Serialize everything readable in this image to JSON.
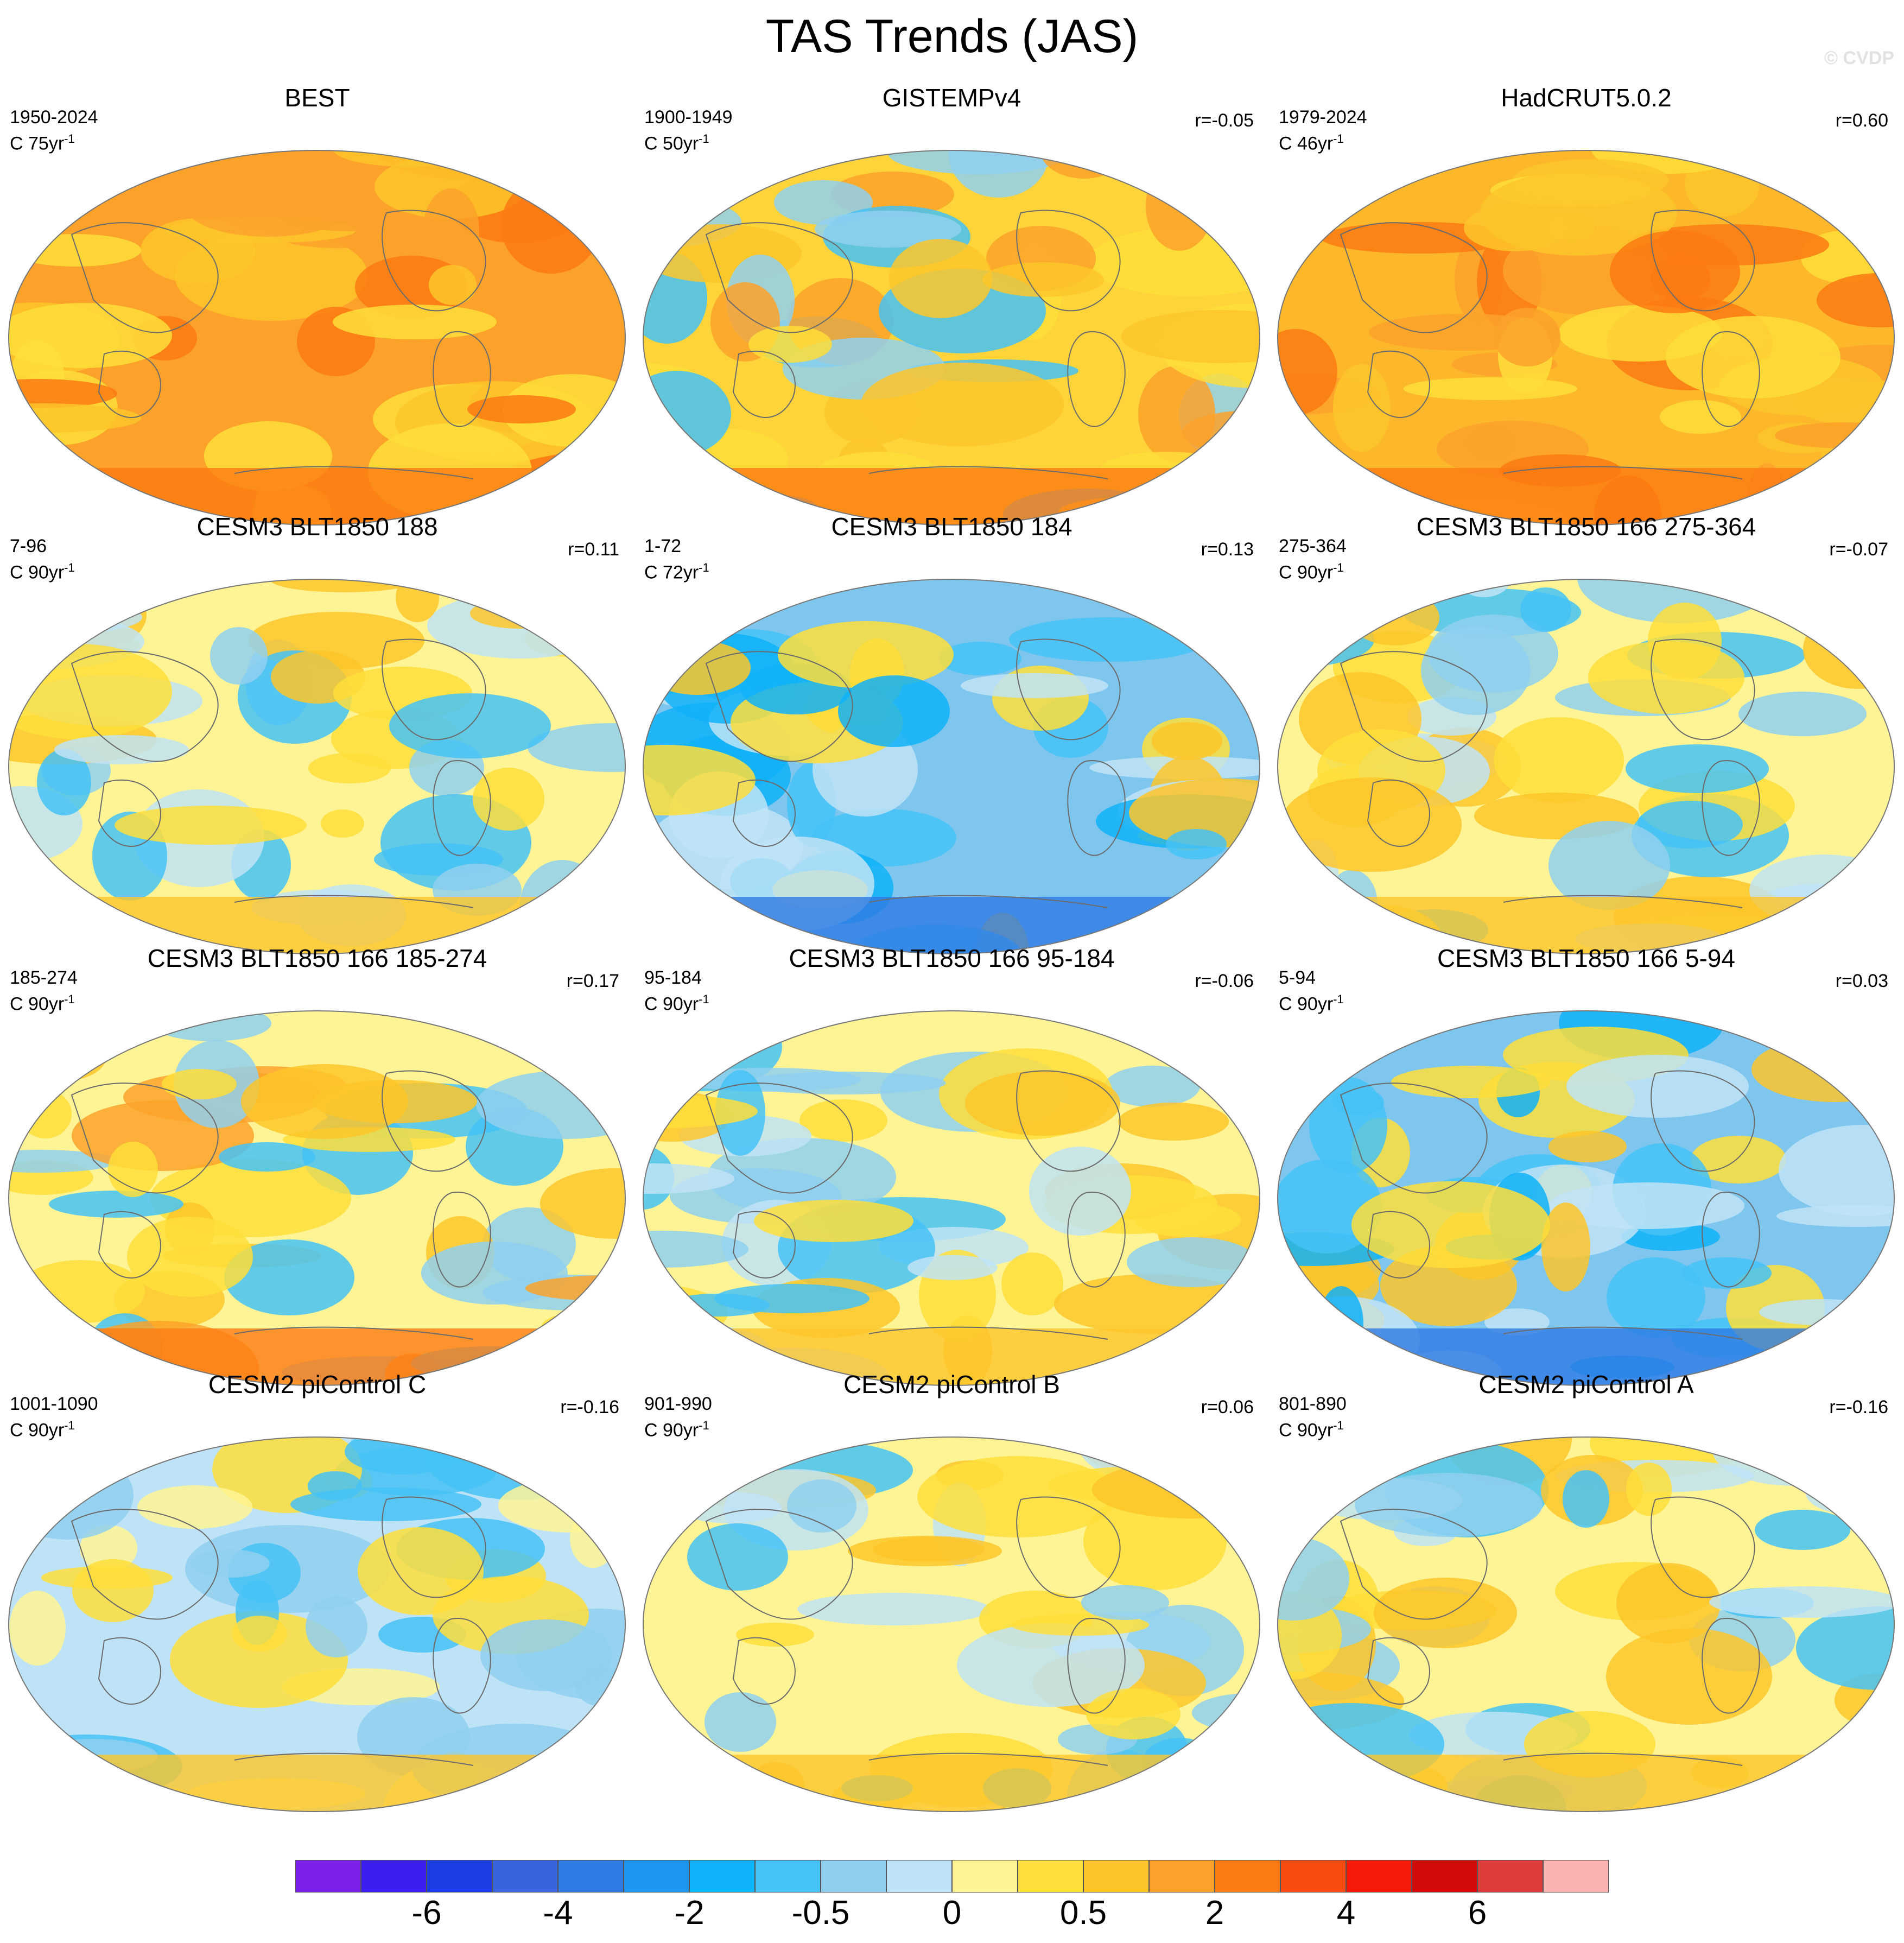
{
  "title": "TAS Trends (JAS)",
  "credit": "© CVDP",
  "panels": [
    {
      "title": "BEST",
      "period": "1950-2024",
      "trend": "C 75yr",
      "corr": "",
      "base": "#fca22a",
      "style": "warm"
    },
    {
      "title": "GISTEMPv4",
      "period": "1900-1949",
      "trend": "C 50yr",
      "corr": "r=-0.05",
      "base": "#fed43a",
      "style": "mixedwarm"
    },
    {
      "title": "HadCRUT5.0.2",
      "period": "1979-2024",
      "trend": "C 46yr",
      "corr": "r=0.60",
      "base": "#fdb72a",
      "style": "warm"
    },
    {
      "title": "CESM3 BLT1850 188",
      "period": "7-96",
      "trend": "C 90yr",
      "corr": "r=0.11",
      "base": "#fef495",
      "style": "mixed"
    },
    {
      "title": "CESM3 BLT1850 184",
      "period": "1-72",
      "trend": "C 72yr",
      "corr": "r=0.13",
      "base": "#7fc6ee",
      "style": "cool"
    },
    {
      "title": "CESM3 BLT1850 166 275-364",
      "period": "275-364",
      "trend": "C 90yr",
      "corr": "r=-0.07",
      "base": "#fef495",
      "style": "mixed"
    },
    {
      "title": "CESM3 BLT1850 166 185-274",
      "period": "185-274",
      "trend": "C 90yr",
      "corr": "r=0.17",
      "base": "#fef495",
      "style": "mixedwarm"
    },
    {
      "title": "CESM3 BLT1850 166 95-184",
      "period": "95-184",
      "trend": "C 90yr",
      "corr": "r=-0.06",
      "base": "#fef495",
      "style": "mixed"
    },
    {
      "title": "CESM3 BLT1850 166 5-94",
      "period": "5-94",
      "trend": "C 90yr",
      "corr": "r=0.03",
      "base": "#7fc6ee",
      "style": "cool"
    },
    {
      "title": "CESM2 piControl C",
      "period": "1001-1090",
      "trend": "C 90yr",
      "corr": "r=-0.16",
      "base": "#bfe3f6",
      "style": "mixedcool"
    },
    {
      "title": "CESM2 piControl B",
      "period": "901-990",
      "trend": "C 90yr",
      "corr": "r=0.06",
      "base": "#fef495",
      "style": "mixed"
    },
    {
      "title": "CESM2 piControl A",
      "period": "801-890",
      "trend": "C 90yr",
      "corr": "r=-0.16",
      "base": "#fef495",
      "style": "mixed"
    }
  ],
  "colorbar": {
    "colors": [
      "#7b20e8",
      "#3a1ff0",
      "#1c3ce6",
      "#3a64dd",
      "#2f7ae4",
      "#1e96f0",
      "#0fb2f8",
      "#45c2f6",
      "#8fd0ef",
      "#bfe3f6",
      "#fef495",
      "#fede3a",
      "#fdc52a",
      "#fca22a",
      "#fc7a12",
      "#f94a10",
      "#f51a0a",
      "#d30c0a",
      "#dc3c3c",
      "#fdb2b2"
    ],
    "labels": [
      "-6",
      "-4",
      "-2",
      "-0.5",
      "0",
      "0.5",
      "2",
      "4",
      "6"
    ]
  }
}
